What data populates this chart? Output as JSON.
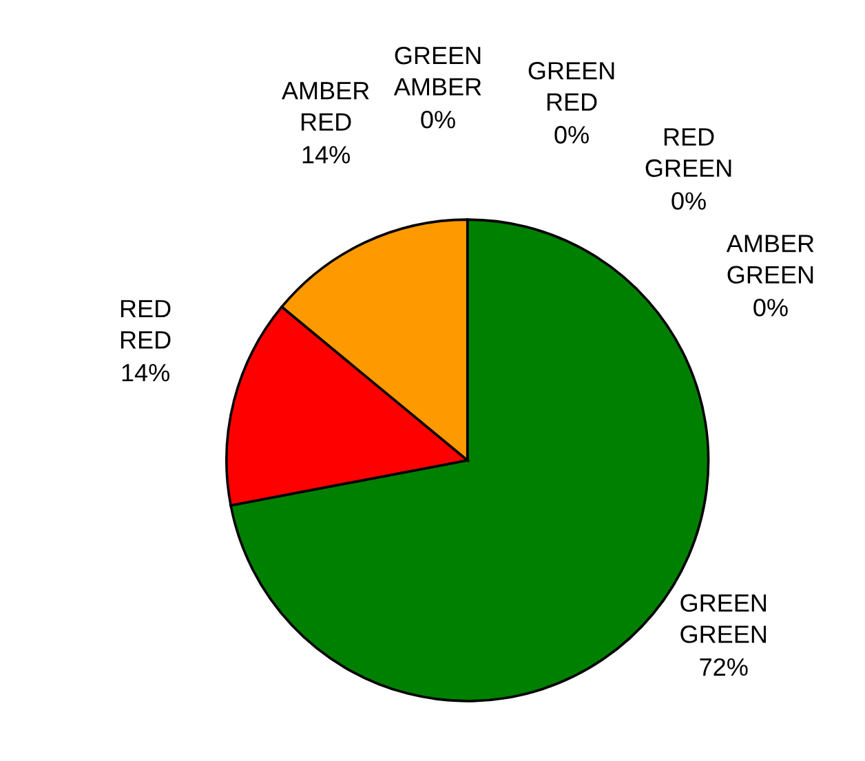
{
  "chart_data": {
    "type": "pie",
    "categories": [
      "GREEN GREEN",
      "RED RED",
      "AMBER RED",
      "GREEN AMBER",
      "GREEN RED",
      "RED GREEN",
      "AMBER GREEN"
    ],
    "values": [
      72,
      14,
      14,
      0,
      0,
      0,
      0
    ],
    "value_labels": [
      "72%",
      "14%",
      "14%",
      "0%",
      "0%",
      "0%",
      "0%"
    ],
    "colors": [
      "#008000",
      "#ff0000",
      "#ff9900",
      "#ff9900",
      "#ff0000",
      "#008000",
      "#008000"
    ],
    "legend": false
  }
}
